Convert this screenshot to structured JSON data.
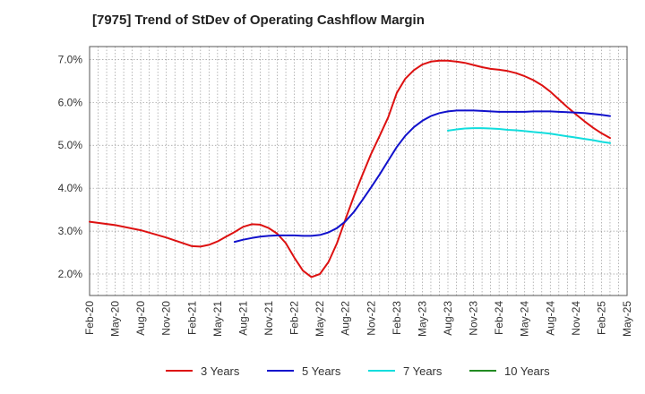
{
  "chart_data": {
    "type": "line",
    "title": "[7975]  Trend of StDev of Operating Cashflow Margin",
    "xlabel": "",
    "ylabel": "",
    "x_tick_labels": [
      "Feb-20",
      "May-20",
      "Aug-20",
      "Nov-20",
      "Feb-21",
      "May-21",
      "Aug-21",
      "Nov-21",
      "Feb-22",
      "May-22",
      "Aug-22",
      "Nov-22",
      "Feb-23",
      "May-23",
      "Aug-23",
      "Nov-23",
      "Feb-24",
      "May-24",
      "Aug-24",
      "Nov-24",
      "Feb-25",
      "May-25"
    ],
    "y_tick_labels": [
      "2.0%",
      "3.0%",
      "4.0%",
      "5.0%",
      "6.0%",
      "7.0%"
    ],
    "y_ticks": [
      2.0,
      3.0,
      4.0,
      5.0,
      6.0,
      7.0
    ],
    "ylim": [
      1.5,
      7.3
    ],
    "x_range": [
      "Feb-20",
      "May-25"
    ],
    "grid": "dotted, vertical monthly and horizontal",
    "legend_position": "bottom",
    "series": [
      {
        "name": "3 Years",
        "color": "#dd1111",
        "points": [
          [
            "Feb-20",
            3.22
          ],
          [
            "May-20",
            3.14
          ],
          [
            "Aug-20",
            3.02
          ],
          [
            "Nov-20",
            2.85
          ],
          [
            "Feb-21",
            2.65
          ],
          [
            "Mar-21",
            2.64
          ],
          [
            "Apr-21",
            2.68
          ],
          [
            "May-21",
            2.76
          ],
          [
            "Jun-21",
            2.87
          ],
          [
            "Jul-21",
            2.98
          ],
          [
            "Aug-21",
            3.1
          ],
          [
            "Sep-21",
            3.16
          ],
          [
            "Oct-21",
            3.15
          ],
          [
            "Nov-21",
            3.07
          ],
          [
            "Dec-21",
            2.94
          ],
          [
            "Jan-22",
            2.72
          ],
          [
            "Feb-22",
            2.38
          ],
          [
            "Mar-22",
            2.08
          ],
          [
            "Apr-22",
            1.93
          ],
          [
            "May-22",
            2.0
          ],
          [
            "Jun-22",
            2.28
          ],
          [
            "Jul-22",
            2.72
          ],
          [
            "Aug-22",
            3.28
          ],
          [
            "Sep-22",
            3.82
          ],
          [
            "Oct-22",
            4.32
          ],
          [
            "Nov-22",
            4.8
          ],
          [
            "Dec-22",
            5.22
          ],
          [
            "Jan-23",
            5.65
          ],
          [
            "Feb-23",
            6.22
          ],
          [
            "Mar-23",
            6.55
          ],
          [
            "Apr-23",
            6.75
          ],
          [
            "May-23",
            6.88
          ],
          [
            "Jun-23",
            6.95
          ],
          [
            "Jul-23",
            6.97
          ],
          [
            "Aug-23",
            6.97
          ],
          [
            "Sep-23",
            6.95
          ],
          [
            "Oct-23",
            6.92
          ],
          [
            "Nov-23",
            6.87
          ],
          [
            "Dec-23",
            6.82
          ],
          [
            "Jan-24",
            6.78
          ],
          [
            "Feb-24",
            6.76
          ],
          [
            "Mar-24",
            6.73
          ],
          [
            "Apr-24",
            6.68
          ],
          [
            "May-24",
            6.61
          ],
          [
            "Jun-24",
            6.52
          ],
          [
            "Jul-24",
            6.4
          ],
          [
            "Aug-24",
            6.25
          ],
          [
            "Sep-24",
            6.07
          ],
          [
            "Oct-24",
            5.89
          ],
          [
            "Nov-24",
            5.72
          ],
          [
            "Dec-24",
            5.56
          ],
          [
            "Jan-25",
            5.41
          ],
          [
            "Feb-25",
            5.28
          ],
          [
            "Mar-25",
            5.17
          ]
        ]
      },
      {
        "name": "5 Years",
        "color": "#1111cc",
        "points": [
          [
            "Jul-21",
            2.75
          ],
          [
            "Aug-21",
            2.8
          ],
          [
            "Sep-21",
            2.84
          ],
          [
            "Oct-21",
            2.87
          ],
          [
            "Nov-21",
            2.89
          ],
          [
            "Dec-21",
            2.9
          ],
          [
            "Jan-22",
            2.9
          ],
          [
            "Feb-22",
            2.9
          ],
          [
            "Mar-22",
            2.89
          ],
          [
            "Apr-22",
            2.89
          ],
          [
            "May-22",
            2.91
          ],
          [
            "Jun-22",
            2.97
          ],
          [
            "Jul-22",
            3.07
          ],
          [
            "Aug-22",
            3.23
          ],
          [
            "Sep-22",
            3.45
          ],
          [
            "Oct-22",
            3.73
          ],
          [
            "Nov-22",
            4.02
          ],
          [
            "Dec-22",
            4.32
          ],
          [
            "Jan-23",
            4.64
          ],
          [
            "Feb-23",
            4.96
          ],
          [
            "Mar-23",
            5.22
          ],
          [
            "Apr-23",
            5.42
          ],
          [
            "May-23",
            5.57
          ],
          [
            "Jun-23",
            5.68
          ],
          [
            "Jul-23",
            5.75
          ],
          [
            "Aug-23",
            5.79
          ],
          [
            "Sep-23",
            5.81
          ],
          [
            "Oct-23",
            5.81
          ],
          [
            "Nov-23",
            5.81
          ],
          [
            "Dec-23",
            5.8
          ],
          [
            "Jan-24",
            5.79
          ],
          [
            "Feb-24",
            5.78
          ],
          [
            "Mar-24",
            5.78
          ],
          [
            "Apr-24",
            5.78
          ],
          [
            "May-24",
            5.78
          ],
          [
            "Jun-24",
            5.79
          ],
          [
            "Jul-24",
            5.79
          ],
          [
            "Aug-24",
            5.79
          ],
          [
            "Sep-24",
            5.78
          ],
          [
            "Oct-24",
            5.77
          ],
          [
            "Nov-24",
            5.76
          ],
          [
            "Dec-24",
            5.75
          ],
          [
            "Jan-25",
            5.73
          ],
          [
            "Feb-25",
            5.71
          ],
          [
            "Mar-25",
            5.68
          ]
        ]
      },
      {
        "name": "7 Years",
        "color": "#11dddd",
        "points": [
          [
            "Aug-23",
            5.34
          ],
          [
            "Sep-23",
            5.37
          ],
          [
            "Oct-23",
            5.39
          ],
          [
            "Nov-23",
            5.4
          ],
          [
            "Dec-23",
            5.4
          ],
          [
            "Jan-24",
            5.39
          ],
          [
            "Feb-24",
            5.38
          ],
          [
            "Mar-24",
            5.36
          ],
          [
            "Apr-24",
            5.35
          ],
          [
            "May-24",
            5.33
          ],
          [
            "Jun-24",
            5.31
          ],
          [
            "Jul-24",
            5.29
          ],
          [
            "Aug-24",
            5.27
          ],
          [
            "Sep-24",
            5.24
          ],
          [
            "Oct-24",
            5.21
          ],
          [
            "Nov-24",
            5.18
          ],
          [
            "Dec-24",
            5.15
          ],
          [
            "Jan-25",
            5.12
          ],
          [
            "Feb-25",
            5.08
          ],
          [
            "Mar-25",
            5.05
          ]
        ]
      },
      {
        "name": "10 Years",
        "color": "#228B22",
        "points": []
      }
    ]
  }
}
